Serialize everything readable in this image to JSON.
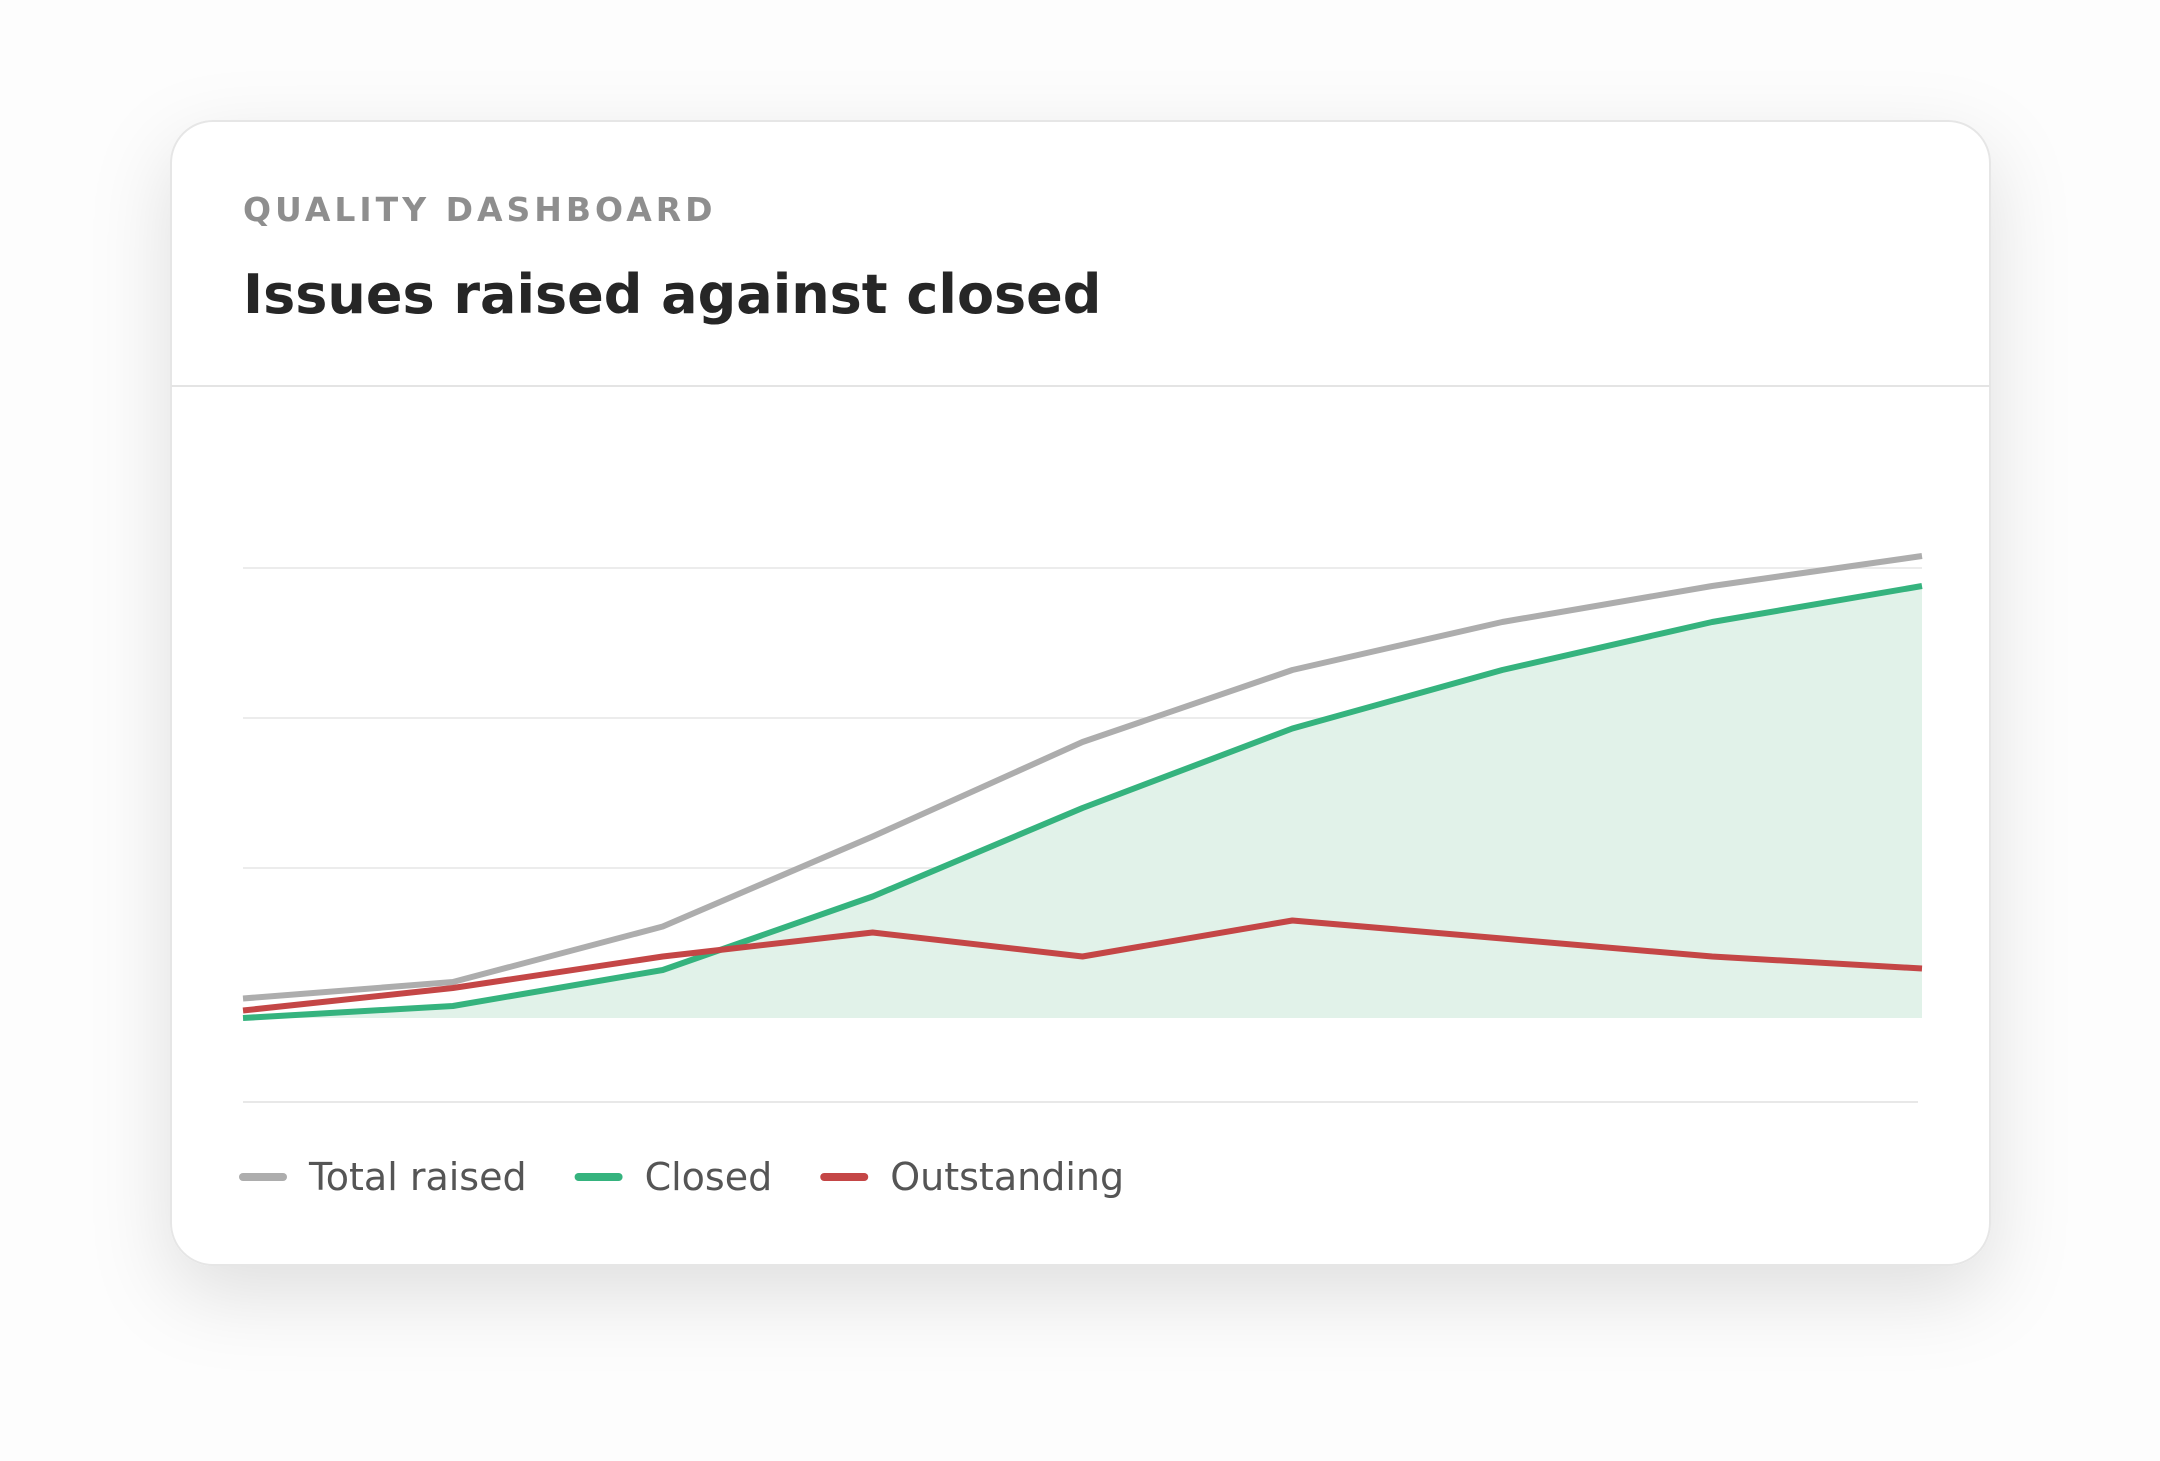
{
  "header": {
    "eyebrow": "QUALITY DASHBOARD",
    "title": "Issues raised against closed"
  },
  "chart_data": {
    "type": "line",
    "categories": [
      null,
      null,
      null,
      null,
      null,
      null,
      null,
      null,
      null
    ],
    "series": [
      {
        "name": "Total raised",
        "color": "#adadad",
        "values": [
          1.3,
          2.4,
          6.1,
          12.1,
          18.4,
          23.2,
          26.4,
          28.8,
          30.8
        ]
      },
      {
        "name": "Closed",
        "color": "#35b37e",
        "fill": "#e1f2e9",
        "values": [
          0,
          0.8,
          3.2,
          8.1,
          14.0,
          19.3,
          23.2,
          26.4,
          28.8
        ]
      },
      {
        "name": "Outstanding",
        "color": "#c44646",
        "values": [
          0.5,
          2.0,
          4.1,
          5.7,
          4.1,
          6.5,
          5.3,
          4.1,
          3.3
        ]
      }
    ],
    "ylim": [
      0,
      40
    ],
    "yticks": [
      10,
      20,
      30
    ],
    "grid": true,
    "legend": "bottom"
  }
}
